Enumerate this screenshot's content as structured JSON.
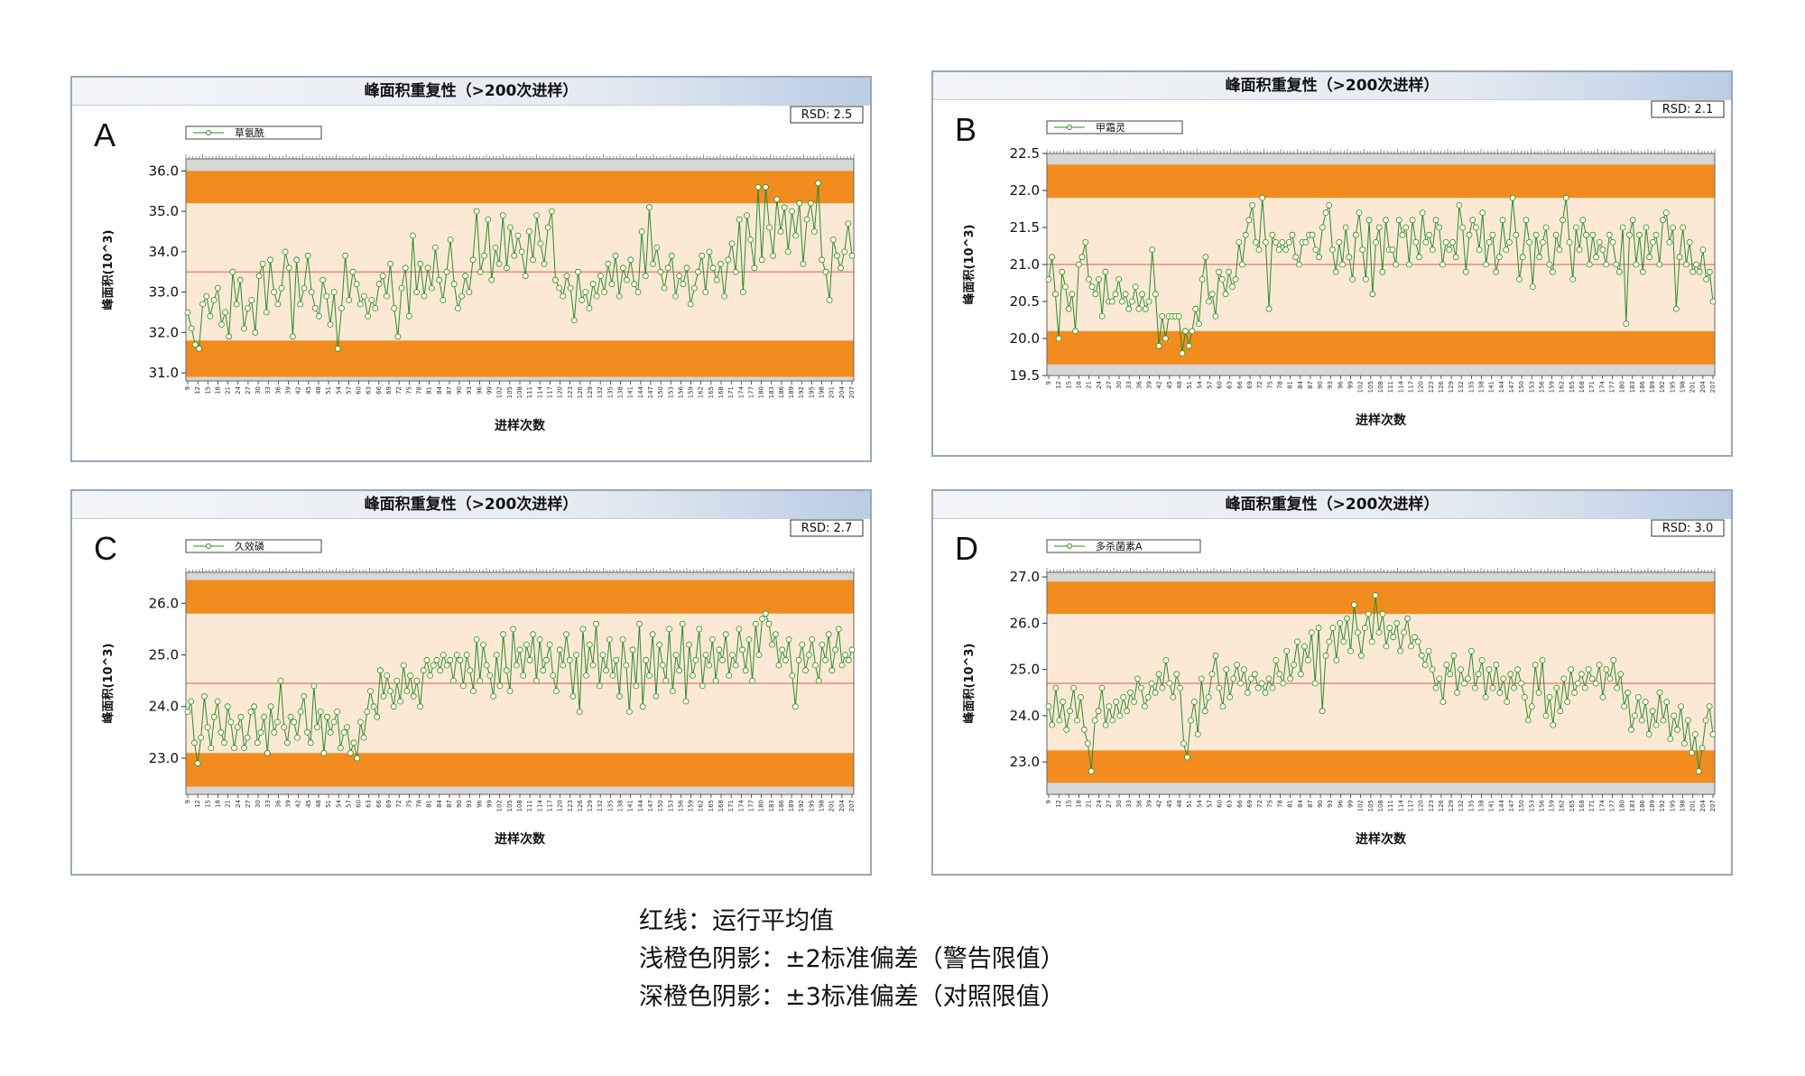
{
  "x_ticks": [
    "9",
    "12",
    "15",
    "18",
    "21",
    "24",
    "27",
    "30",
    "33",
    "36",
    "39",
    "42",
    "45",
    "48",
    "51",
    "54",
    "57",
    "60",
    "63",
    "66",
    "69",
    "72",
    "75",
    "78",
    "81",
    "84",
    "87",
    "90",
    "93",
    "96",
    "99",
    "102",
    "105",
    "108",
    "111",
    "114",
    "117",
    "120",
    "123",
    "126",
    "129",
    "132",
    "135",
    "138",
    "141",
    "144",
    "147",
    "150",
    "153",
    "156",
    "159",
    "162",
    "165",
    "168",
    "171",
    "174",
    "177",
    "180",
    "183",
    "186",
    "189",
    "192",
    "195",
    "198",
    "201",
    "204",
    "207"
  ],
  "colors": {
    "band_dark": "#f28c1e",
    "band_light": "#fbe9d6",
    "mean_line": "#e07b6a",
    "series_line": "#2e8b2e",
    "marker_fill": "#ffffe8",
    "plot_bg": "#d7d7d7"
  },
  "chart_data": [
    {
      "type": "line",
      "panel_letter": "A",
      "title": "峰面积重复性（>200次进样）",
      "xlabel": "进样次数",
      "ylabel": "峰面积(10^3)",
      "rsd_label": "RSD: 2.5",
      "legend": [
        "草氨酰"
      ],
      "yticks": [
        "36.0",
        "35.0",
        "34.0",
        "33.0",
        "32.0",
        "31.0"
      ],
      "ylim": [
        30.8,
        36.3
      ],
      "mean": 33.5,
      "warning_limits": [
        31.8,
        35.2
      ],
      "control_limits": [
        30.9,
        36.0
      ],
      "series": [
        {
          "name": "草氨酰",
          "x_start": 9,
          "x_end": 209,
          "values": [
            32.5,
            32.1,
            31.7,
            31.6,
            32.7,
            32.9,
            32.4,
            32.8,
            33.1,
            32.2,
            32.5,
            31.9,
            33.5,
            32.7,
            33.3,
            32.1,
            32.6,
            32.8,
            32.0,
            33.4,
            33.7,
            32.5,
            33.8,
            33.0,
            32.7,
            33.1,
            34.0,
            33.6,
            31.9,
            33.8,
            32.7,
            33.1,
            33.9,
            33.0,
            32.6,
            32.4,
            33.3,
            32.9,
            32.2,
            33.0,
            31.6,
            32.6,
            33.9,
            32.8,
            33.5,
            33.2,
            32.7,
            32.9,
            32.4,
            32.8,
            32.6,
            33.2,
            33.4,
            32.9,
            33.7,
            32.6,
            31.9,
            33.1,
            33.6,
            32.4,
            34.4,
            33.0,
            33.7,
            32.9,
            33.6,
            33.1,
            34.1,
            33.3,
            32.8,
            33.5,
            34.3,
            33.2,
            32.6,
            32.9,
            33.4,
            33.0,
            33.8,
            35.0,
            33.5,
            33.9,
            34.8,
            33.3,
            34.1,
            33.7,
            34.9,
            33.6,
            34.6,
            33.9,
            34.4,
            34.0,
            33.4,
            34.5,
            33.8,
            34.9,
            34.2,
            33.7,
            34.6,
            35.0,
            33.3,
            33.1,
            32.9,
            33.4,
            33.1,
            32.3,
            33.5,
            32.8,
            33.0,
            32.6,
            33.2,
            32.9,
            33.4,
            33.0,
            33.7,
            33.2,
            33.9,
            32.9,
            33.6,
            33.3,
            33.8,
            33.2,
            33.0,
            34.5,
            33.4,
            35.1,
            33.7,
            34.1,
            33.5,
            33.1,
            33.6,
            33.9,
            32.9,
            33.4,
            33.2,
            33.6,
            32.7,
            33.1,
            33.5,
            33.9,
            33.0,
            34.0,
            33.6,
            33.3,
            33.7,
            32.9,
            33.8,
            34.2,
            33.5,
            34.8,
            33.0,
            34.9,
            34.3,
            33.6,
            35.6,
            33.8,
            35.6,
            34.6,
            33.9,
            35.3,
            34.5,
            35.1,
            34.0,
            35.0,
            34.4,
            35.2,
            33.7,
            34.8,
            35.2,
            34.5,
            35.7,
            33.8,
            33.5,
            32.8,
            34.3,
            33.9,
            33.6,
            34.0,
            34.7,
            33.9
          ]
        }
      ]
    },
    {
      "type": "line",
      "panel_letter": "B",
      "title": "峰面积重复性（>200次进样）",
      "xlabel": "进样次数",
      "ylabel": "峰面积(10^3)",
      "rsd_label": "RSD: 2.1",
      "legend": [
        "甲霜灵"
      ],
      "yticks": [
        "22.5",
        "22.0",
        "21.5",
        "21.0",
        "20.5",
        "20.0",
        "19.5"
      ],
      "ylim": [
        19.5,
        22.5
      ],
      "mean": 21.0,
      "warning_limits": [
        20.1,
        21.9
      ],
      "control_limits": [
        19.65,
        22.35
      ],
      "series": [
        {
          "name": "甲霜灵",
          "x_start": 9,
          "x_end": 209,
          "values": [
            20.8,
            21.1,
            20.6,
            20.0,
            20.9,
            20.7,
            20.4,
            20.6,
            20.1,
            21.0,
            21.1,
            21.3,
            20.8,
            20.7,
            20.6,
            20.8,
            20.3,
            20.9,
            20.5,
            20.5,
            20.6,
            20.8,
            20.5,
            20.6,
            20.4,
            20.5,
            20.7,
            20.4,
            20.6,
            20.4,
            20.5,
            21.2,
            20.6,
            19.9,
            20.3,
            20.0,
            20.3,
            20.3,
            20.3,
            20.3,
            19.8,
            20.1,
            19.9,
            20.1,
            20.4,
            20.2,
            20.8,
            21.1,
            20.5,
            20.6,
            20.3,
            20.9,
            20.8,
            20.6,
            20.9,
            20.7,
            20.8,
            21.3,
            21.0,
            21.4,
            21.6,
            21.8,
            21.3,
            21.2,
            21.9,
            21.3,
            20.4,
            21.4,
            21.3,
            21.2,
            21.3,
            21.2,
            21.3,
            21.4,
            21.1,
            21.0,
            21.3,
            21.3,
            21.4,
            21.4,
            21.2,
            21.1,
            21.5,
            21.7,
            21.8,
            21.2,
            20.9,
            21.3,
            21.0,
            21.5,
            21.1,
            20.8,
            21.4,
            21.7,
            21.2,
            20.8,
            21.6,
            20.6,
            21.3,
            21.5,
            20.9,
            21.6,
            21.2,
            21.2,
            21.0,
            21.6,
            21.4,
            21.5,
            21.0,
            21.6,
            21.3,
            21.1,
            21.7,
            21.3,
            21.4,
            21.2,
            21.6,
            21.5,
            21.0,
            21.3,
            21.2,
            21.3,
            21.1,
            21.8,
            21.5,
            20.9,
            21.4,
            21.6,
            21.5,
            21.2,
            21.7,
            21.0,
            21.3,
            21.4,
            20.9,
            21.1,
            21.6,
            21.2,
            21.3,
            21.9,
            21.4,
            20.8,
            21.1,
            21.6,
            21.3,
            20.7,
            21.4,
            21.1,
            21.3,
            21.5,
            21.0,
            20.9,
            21.4,
            21.2,
            21.6,
            21.9,
            21.3,
            20.8,
            21.5,
            21.2,
            21.6,
            21.4,
            21.0,
            21.4,
            21.1,
            21.3,
            21.2,
            21.0,
            21.4,
            21.3,
            21.0,
            20.9,
            21.5,
            20.2,
            21.4,
            21.6,
            21.0,
            21.4,
            20.9,
            21.5,
            21.1,
            21.3,
            21.4,
            21.0,
            21.6,
            21.7,
            21.3,
            21.5,
            20.4,
            21.1,
            21.5,
            21.0,
            21.3,
            20.9,
            21.0,
            20.9,
            21.2,
            20.8,
            20.9,
            20.5
          ]
        }
      ]
    },
    {
      "type": "line",
      "panel_letter": "C",
      "title": "峰面积重复性（>200次进样）",
      "xlabel": "进样次数",
      "ylabel": "峰面积(10^3)",
      "rsd_label": "RSD: 2.7",
      "legend": [
        "久效磷"
      ],
      "yticks": [
        "26.0",
        "25.0",
        "24.0",
        "23.0"
      ],
      "ylim": [
        22.3,
        26.6
      ],
      "mean": 24.45,
      "warning_limits": [
        23.1,
        25.8
      ],
      "control_limits": [
        22.45,
        26.45
      ],
      "series": [
        {
          "name": "久效磷",
          "x_start": 9,
          "x_end": 209,
          "values": [
            23.9,
            24.1,
            23.3,
            22.9,
            23.4,
            24.2,
            23.6,
            23.2,
            23.8,
            24.1,
            23.5,
            23.3,
            24.0,
            23.7,
            23.2,
            23.6,
            23.8,
            23.2,
            23.4,
            23.9,
            24.0,
            23.3,
            23.5,
            23.8,
            23.1,
            24.0,
            23.5,
            23.7,
            24.5,
            23.6,
            23.3,
            23.8,
            23.7,
            23.4,
            23.9,
            24.2,
            23.5,
            23.3,
            24.4,
            23.6,
            23.9,
            23.1,
            23.8,
            23.5,
            23.7,
            23.9,
            23.2,
            23.5,
            23.6,
            23.1,
            23.3,
            23.0,
            23.7,
            23.4,
            23.9,
            24.3,
            24.0,
            23.8,
            24.7,
            24.2,
            24.6,
            24.3,
            24.0,
            24.5,
            24.1,
            24.8,
            24.3,
            24.6,
            24.2,
            24.5,
            24.0,
            24.7,
            24.9,
            24.6,
            24.8,
            24.9,
            24.7,
            25.0,
            24.8,
            24.9,
            24.5,
            25.0,
            24.9,
            24.4,
            25.0,
            24.7,
            24.3,
            25.3,
            24.5,
            25.2,
            24.8,
            24.6,
            24.2,
            25.0,
            24.4,
            25.4,
            24.7,
            24.3,
            25.5,
            24.8,
            25.1,
            24.6,
            25.2,
            24.9,
            25.4,
            24.5,
            25.3,
            24.7,
            24.9,
            25.2,
            24.6,
            24.3,
            25.1,
            24.8,
            25.4,
            24.9,
            24.2,
            25.0,
            23.9,
            25.5,
            24.6,
            25.2,
            24.8,
            25.6,
            24.4,
            25.0,
            24.7,
            25.3,
            24.6,
            24.9,
            24.2,
            25.3,
            24.8,
            23.9,
            25.1,
            24.4,
            25.6,
            24.0,
            24.9,
            24.6,
            25.4,
            24.2,
            25.2,
            24.8,
            24.5,
            25.5,
            24.3,
            25.0,
            24.7,
            25.6,
            24.1,
            25.2,
            24.6,
            24.9,
            25.5,
            24.4,
            25.0,
            24.8,
            25.3,
            24.5,
            25.1,
            24.9,
            25.4,
            24.6,
            25.0,
            24.8,
            25.5,
            25.1,
            24.7,
            25.3,
            24.5,
            25.6,
            25.0,
            25.7,
            25.8,
            25.6,
            25.2,
            25.4,
            24.8,
            25.1,
            24.9,
            25.3,
            24.6,
            24.0,
            24.9,
            25.2,
            24.7,
            25.0,
            25.3,
            24.8,
            24.5,
            25.2,
            24.9,
            25.4,
            24.7,
            25.1,
            25.5,
            24.8,
            25.0,
            24.9,
            25.1
          ]
        }
      ]
    },
    {
      "type": "line",
      "panel_letter": "D",
      "title": "峰面积重复性（>200次进样）",
      "xlabel": "进样次数",
      "ylabel": "峰面积(10^3)",
      "rsd_label": "RSD: 3.0",
      "legend": [
        "多杀菌素A"
      ],
      "yticks": [
        "27.0",
        "26.0",
        "25.0",
        "24.0",
        "23.0"
      ],
      "ylim": [
        22.3,
        27.1
      ],
      "mean": 24.7,
      "warning_limits": [
        23.25,
        26.2
      ],
      "control_limits": [
        22.55,
        26.9
      ],
      "series": [
        {
          "name": "多杀菌素A",
          "x_start": 9,
          "x_end": 209,
          "values": [
            24.2,
            23.8,
            24.6,
            23.9,
            24.3,
            23.7,
            24.1,
            24.6,
            23.9,
            24.4,
            23.7,
            23.4,
            22.8,
            23.9,
            24.1,
            24.6,
            23.8,
            24.2,
            23.9,
            24.3,
            24.0,
            24.4,
            24.1,
            24.5,
            24.3,
            24.8,
            24.6,
            24.2,
            24.4,
            24.7,
            24.5,
            24.9,
            24.6,
            25.2,
            24.7,
            24.4,
            24.9,
            24.6,
            23.4,
            23.1,
            23.9,
            24.3,
            23.6,
            24.8,
            24.1,
            24.4,
            24.9,
            25.3,
            24.6,
            24.2,
            25.0,
            24.4,
            24.8,
            25.1,
            24.7,
            25.0,
            24.5,
            24.8,
            24.9,
            24.6,
            24.7,
            24.5,
            24.8,
            24.6,
            25.2,
            24.9,
            24.7,
            25.4,
            24.8,
            25.1,
            25.6,
            24.9,
            25.5,
            25.2,
            25.8,
            24.7,
            25.9,
            24.1,
            25.3,
            25.6,
            25.9,
            25.2,
            26.0,
            25.6,
            26.1,
            25.4,
            26.4,
            25.8,
            25.3,
            25.9,
            26.2,
            25.6,
            26.6,
            25.8,
            26.2,
            25.5,
            25.9,
            25.7,
            26.0,
            25.4,
            25.8,
            26.1,
            25.5,
            25.7,
            25.6,
            25.3,
            25.1,
            25.4,
            25.0,
            24.6,
            24.8,
            24.3,
            25.1,
            24.9,
            25.3,
            24.5,
            25.0,
            24.7,
            24.8,
            25.4,
            24.6,
            24.9,
            25.2,
            24.4,
            25.0,
            24.6,
            25.1,
            24.5,
            24.8,
            24.3,
            24.9,
            24.6,
            25.0,
            24.7,
            24.4,
            23.9,
            24.2,
            25.1,
            24.5,
            25.2,
            24.0,
            24.4,
            23.8,
            24.6,
            24.1,
            24.8,
            24.3,
            25.0,
            24.5,
            24.7,
            24.9,
            24.6,
            25.0,
            24.8,
            24.7,
            25.1,
            24.4,
            25.0,
            24.8,
            25.2,
            24.6,
            24.9,
            24.2,
            24.5,
            23.7,
            24.0,
            24.4,
            23.9,
            24.3,
            23.6,
            24.1,
            23.8,
            24.5,
            23.9,
            24.3,
            23.5,
            24.0,
            23.7,
            24.2,
            23.4,
            23.9,
            23.2,
            23.6,
            22.8,
            23.3,
            23.9,
            24.2,
            23.6
          ]
        }
      ]
    }
  ],
  "caption": {
    "line1": "红线：运行平均值",
    "line2": "浅橙色阴影：±2标准偏差（警告限值）",
    "line3": "深橙色阴影：±3标准偏差（对照限值）"
  }
}
